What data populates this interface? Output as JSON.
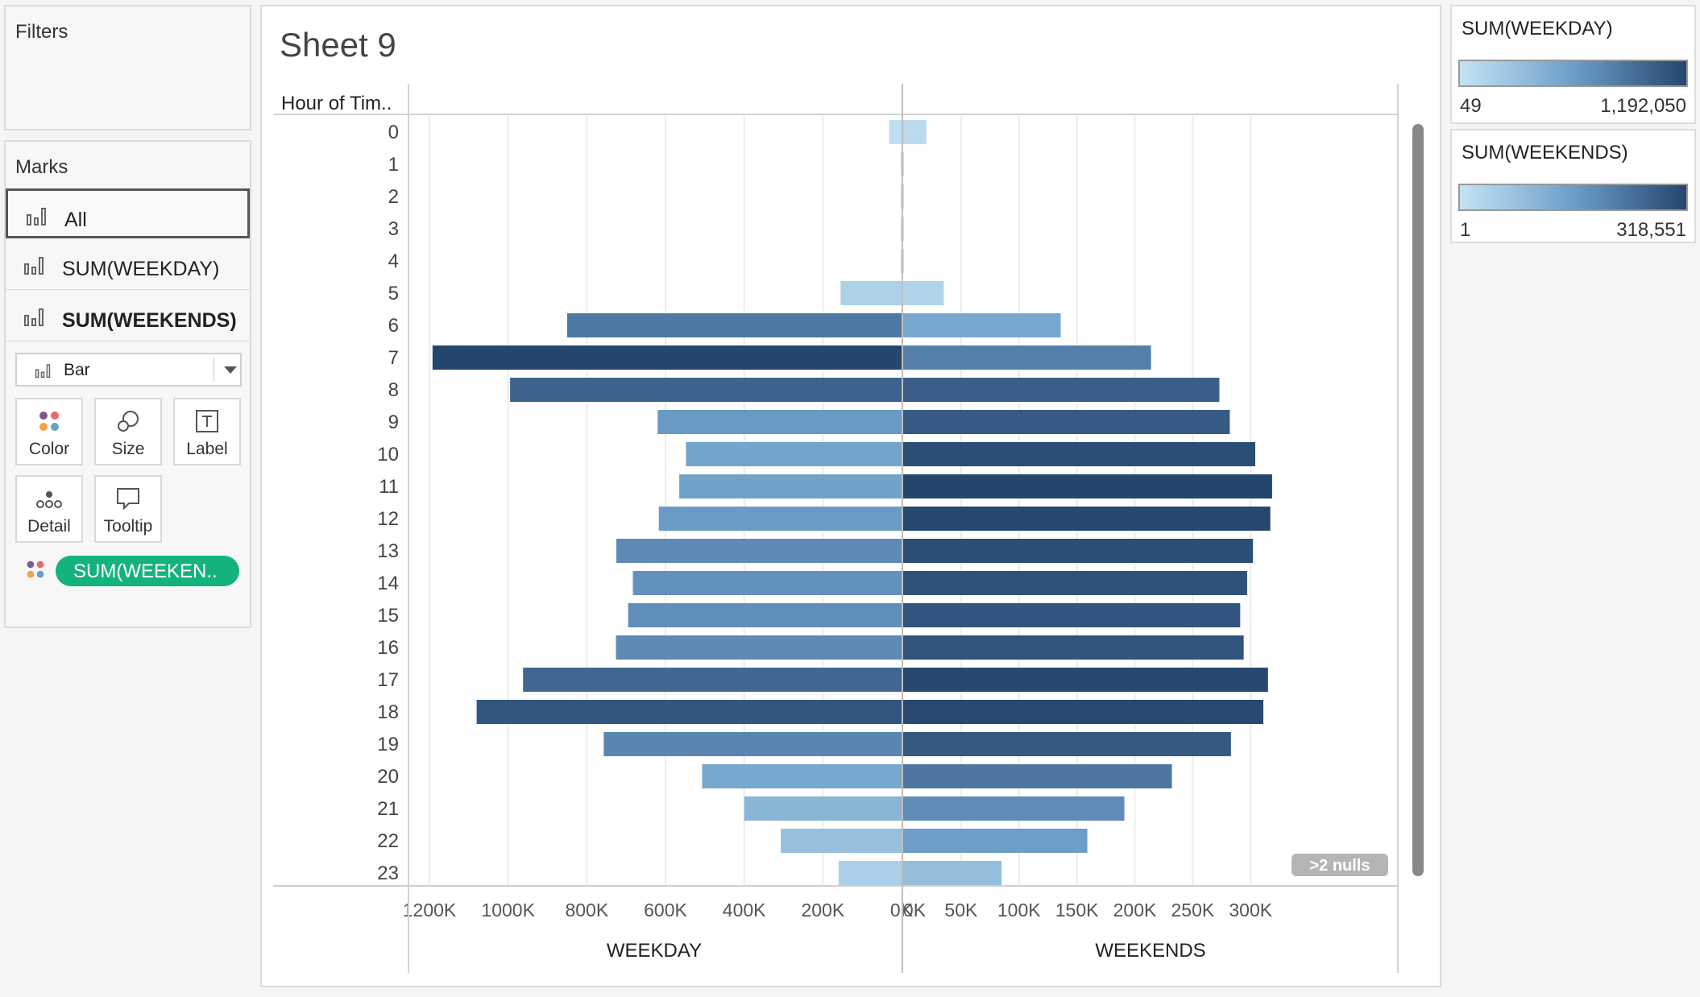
{
  "filters": {
    "title": "Filters"
  },
  "marks": {
    "title": "Marks",
    "cards": [
      {
        "label": "All",
        "selected": true
      },
      {
        "label": "SUM(WEEKDAY)",
        "selected": false
      },
      {
        "label": "SUM(WEEKENDS)",
        "selected": false
      }
    ],
    "mark_type": "Bar",
    "buttons": {
      "color": "Color",
      "size": "Size",
      "label": "Label",
      "detail": "Detail",
      "tooltip": "Tooltip"
    },
    "pill": "SUM(WEEKEN.."
  },
  "sheet": {
    "title": "Sheet 9",
    "row_header": "Hour of Tim..",
    "nulls_badge": ">2 nulls"
  },
  "legends": [
    {
      "title": "SUM(WEEKDAY)",
      "min": "49",
      "max": "1,192,050"
    },
    {
      "title": "SUM(WEEKENDS)",
      "min": "1",
      "max": "318,551"
    }
  ],
  "colors": {
    "accent_pill": "#14b37d",
    "ramp_light": "#c4e3f5",
    "ramp_dark": "#25466e",
    "panel_bg": "#f7f7f7"
  },
  "chart_data": {
    "type": "bar",
    "orientation": "horizontal-butterfly",
    "categories": [
      "0",
      "1",
      "2",
      "3",
      "4",
      "5",
      "6",
      "7",
      "8",
      "9",
      "10",
      "11",
      "12",
      "13",
      "14",
      "15",
      "16",
      "17",
      "18",
      "19",
      "20",
      "21",
      "22",
      "23"
    ],
    "series": [
      {
        "name": "WEEKDAY",
        "values": [
          32000,
          800,
          400,
          300,
          500,
          155000,
          850000,
          1192050,
          995000,
          620000,
          548000,
          565000,
          617000,
          725000,
          683000,
          695000,
          726000,
          962000,
          1080000,
          757000,
          507000,
          400000,
          307000,
          160000
        ],
        "axis_ticks": [
          "1200K",
          "1000K",
          "800K",
          "600K",
          "400K",
          "200K",
          "0K"
        ],
        "xlabel": "WEEKDAY",
        "xlim": [
          0,
          1200000
        ],
        "reversed": true
      },
      {
        "name": "WEEKENDS",
        "values": [
          20000,
          300,
          200,
          100,
          200,
          35000,
          136000,
          214000,
          273000,
          282000,
          304000,
          318551,
          317000,
          302000,
          297000,
          291000,
          294000,
          315000,
          311000,
          283000,
          232000,
          191000,
          159000,
          85000
        ],
        "axis_ticks": [
          "0K",
          "50K",
          "100K",
          "150K",
          "200K",
          "250K",
          "300K"
        ],
        "xlabel": "WEEKENDS",
        "xlim": [
          0,
          320000
        ]
      }
    ],
    "ylabel": "Hour of Tim..",
    "color_scale": {
      "weekday": [
        49,
        1192050
      ],
      "weekends": [
        1,
        318551
      ]
    },
    "grid": true
  }
}
